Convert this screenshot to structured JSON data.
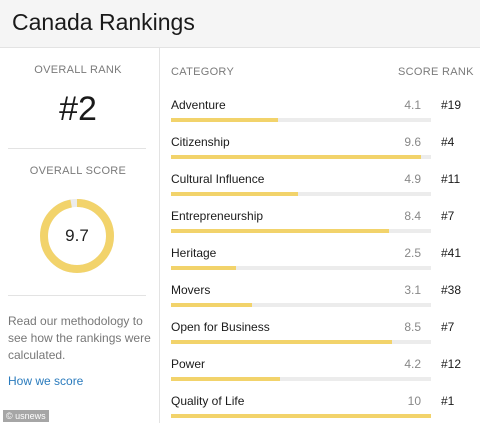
{
  "header": {
    "title": "Canada Rankings"
  },
  "overall": {
    "rank_label": "OVERALL RANK",
    "rank_value": "#2",
    "score_label": "OVERALL SCORE",
    "score_value": "9.7",
    "score_fraction": 0.97
  },
  "methodology": {
    "text": "Read our methodology to see how the rankings were calculated.",
    "link": "How we score"
  },
  "table": {
    "headers": {
      "category": "CATEGORY",
      "score": "SCORE",
      "rank": "RANK"
    },
    "rows": [
      {
        "category": "Adventure",
        "score": "4.1",
        "rank": "#19",
        "value": 4.1
      },
      {
        "category": "Citizenship",
        "score": "9.6",
        "rank": "#4",
        "value": 9.6
      },
      {
        "category": "Cultural Influence",
        "score": "4.9",
        "rank": "#11",
        "value": 4.9
      },
      {
        "category": "Entrepreneurship",
        "score": "8.4",
        "rank": "#7",
        "value": 8.4
      },
      {
        "category": "Heritage",
        "score": "2.5",
        "rank": "#41",
        "value": 2.5
      },
      {
        "category": "Movers",
        "score": "3.1",
        "rank": "#38",
        "value": 3.1
      },
      {
        "category": "Open for Business",
        "score": "8.5",
        "rank": "#7",
        "value": 8.5
      },
      {
        "category": "Power",
        "score": "4.2",
        "rank": "#12",
        "value": 4.2
      },
      {
        "category": "Quality of Life",
        "score": "10",
        "rank": "#1",
        "value": 10
      }
    ],
    "max_score": 10
  },
  "watermark": "© usnews",
  "colors": {
    "accent": "#f2d36b",
    "track": "#ececec",
    "link": "#2a7bbd"
  }
}
